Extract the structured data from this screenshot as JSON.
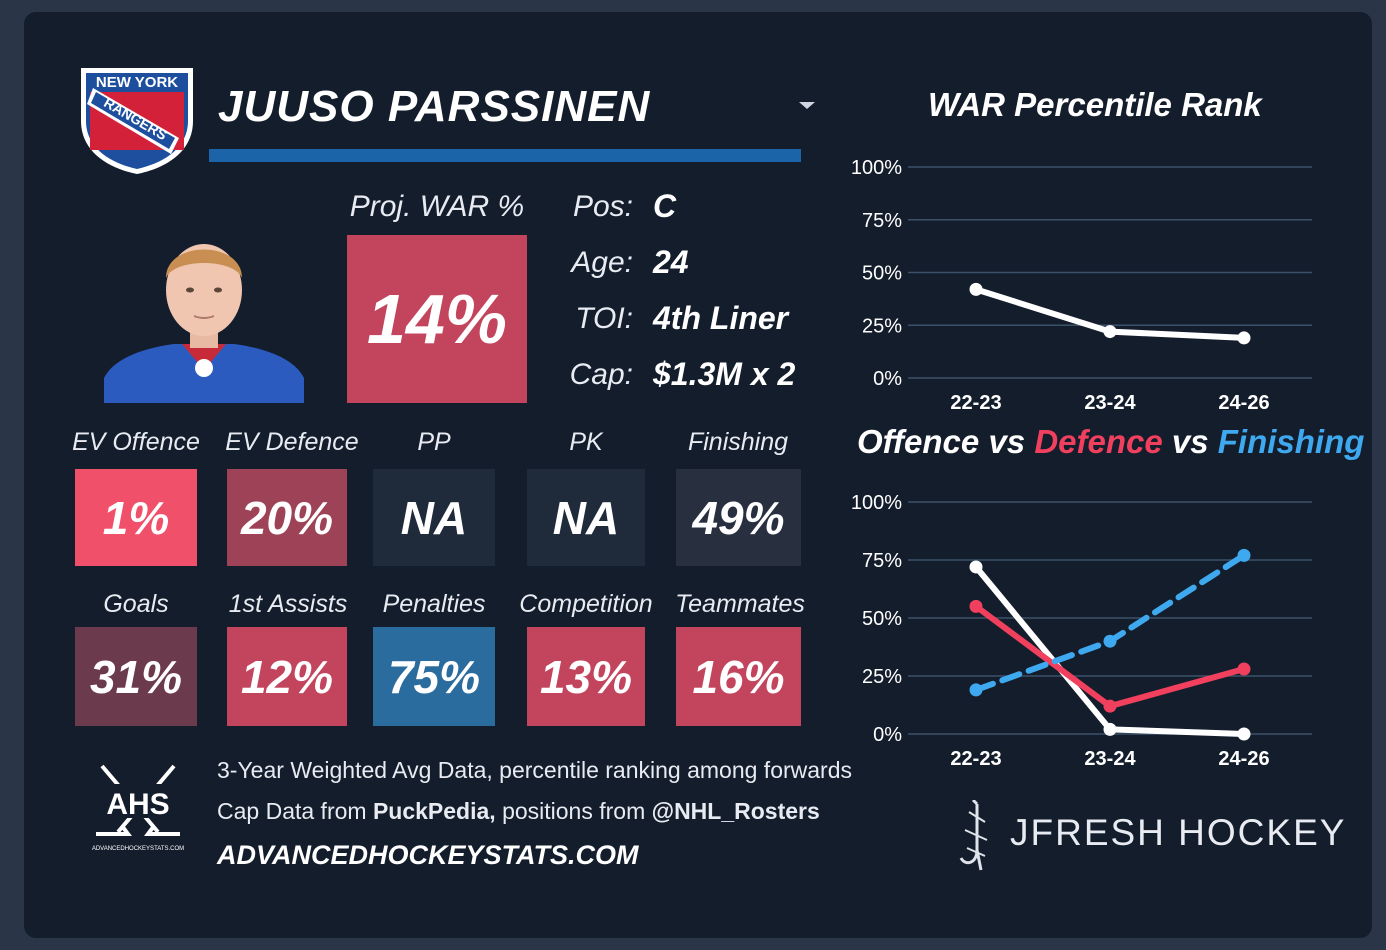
{
  "player": {
    "name": "JUUSO PARSSINEN",
    "team_logo_lines": [
      "NEW YORK",
      "RANGERS"
    ],
    "proj_war_label": "Proj. WAR %",
    "proj_war_value": "14%",
    "info": [
      {
        "label": "Pos:",
        "value": "C"
      },
      {
        "label": "Age:",
        "value": "24"
      },
      {
        "label": "TOI:",
        "value": "4th Liner"
      },
      {
        "label": "Cap:",
        "value": "$1.3M x 2"
      }
    ]
  },
  "metrics_row1": [
    {
      "label": "EV Offence",
      "value": "1%",
      "color": "#f0506a"
    },
    {
      "label": "EV Defence",
      "value": "20%",
      "color": "#9e4258"
    },
    {
      "label": "PP",
      "value": "NA",
      "color": "#1f2a3a"
    },
    {
      "label": "PK",
      "value": "NA",
      "color": "#1f2a3a"
    },
    {
      "label": "Finishing",
      "value": "49%",
      "color": "#283040"
    }
  ],
  "metrics_row2": [
    {
      "label": "Goals",
      "value": "31%",
      "color": "#6c3a4d"
    },
    {
      "label": "1st Assists",
      "value": "12%",
      "color": "#c3455d"
    },
    {
      "label": "Penalties",
      "value": "75%",
      "color": "#2b6c9e"
    },
    {
      "label": "Competition",
      "value": "13%",
      "color": "#c3455d"
    },
    {
      "label": "Teammates",
      "value": "16%",
      "color": "#c3455d"
    }
  ],
  "footer": {
    "logo_text": "AHS",
    "logo_subtext": "ADVANCEDHOCKEYSTATS.COM",
    "line1": "3-Year Weighted Avg Data, percentile ranking among forwards",
    "line2_prefix": "Cap Data from ",
    "line2_bold1": "PuckPedia,",
    "line2_mid": " positions from ",
    "line2_bold2": "@NHL_Rosters",
    "site": "ADVANCEDHOCKEYSTATS.COM",
    "brand": "JFRESH HOCKEY"
  },
  "colors": {
    "offence": "#ffffff",
    "defence": "#f0405e",
    "finishing": "#3fa9f0",
    "grid": "#3b5169"
  },
  "chart_data": [
    {
      "type": "line",
      "title": "WAR Percentile Rank",
      "categories": [
        "22-23",
        "23-24",
        "24-26"
      ],
      "ylim": [
        0,
        100
      ],
      "yticks": [
        "0%",
        "25%",
        "50%",
        "75%",
        "100%"
      ],
      "series": [
        {
          "values": [
            42,
            22,
            19
          ],
          "color": "#ffffff",
          "dashed": false
        }
      ]
    },
    {
      "type": "line",
      "title_parts": [
        {
          "text": "Offence",
          "color": "#ffffff"
        },
        {
          "text": " vs ",
          "color": "#ffffff"
        },
        {
          "text": "Defence",
          "color": "#f0405e"
        },
        {
          "text": " vs ",
          "color": "#ffffff"
        },
        {
          "text": "Finishing",
          "color": "#3fa9f0"
        }
      ],
      "categories": [
        "22-23",
        "23-24",
        "24-26"
      ],
      "ylim": [
        0,
        100
      ],
      "yticks": [
        "0%",
        "25%",
        "50%",
        "75%",
        "100%"
      ],
      "series": [
        {
          "values": [
            72,
            2,
            0
          ],
          "color": "#ffffff",
          "dashed": false
        },
        {
          "values": [
            55,
            12,
            28
          ],
          "color": "#f0405e",
          "dashed": false
        },
        {
          "values": [
            19,
            40,
            77
          ],
          "color": "#3fa9f0",
          "dashed": true
        }
      ]
    }
  ]
}
